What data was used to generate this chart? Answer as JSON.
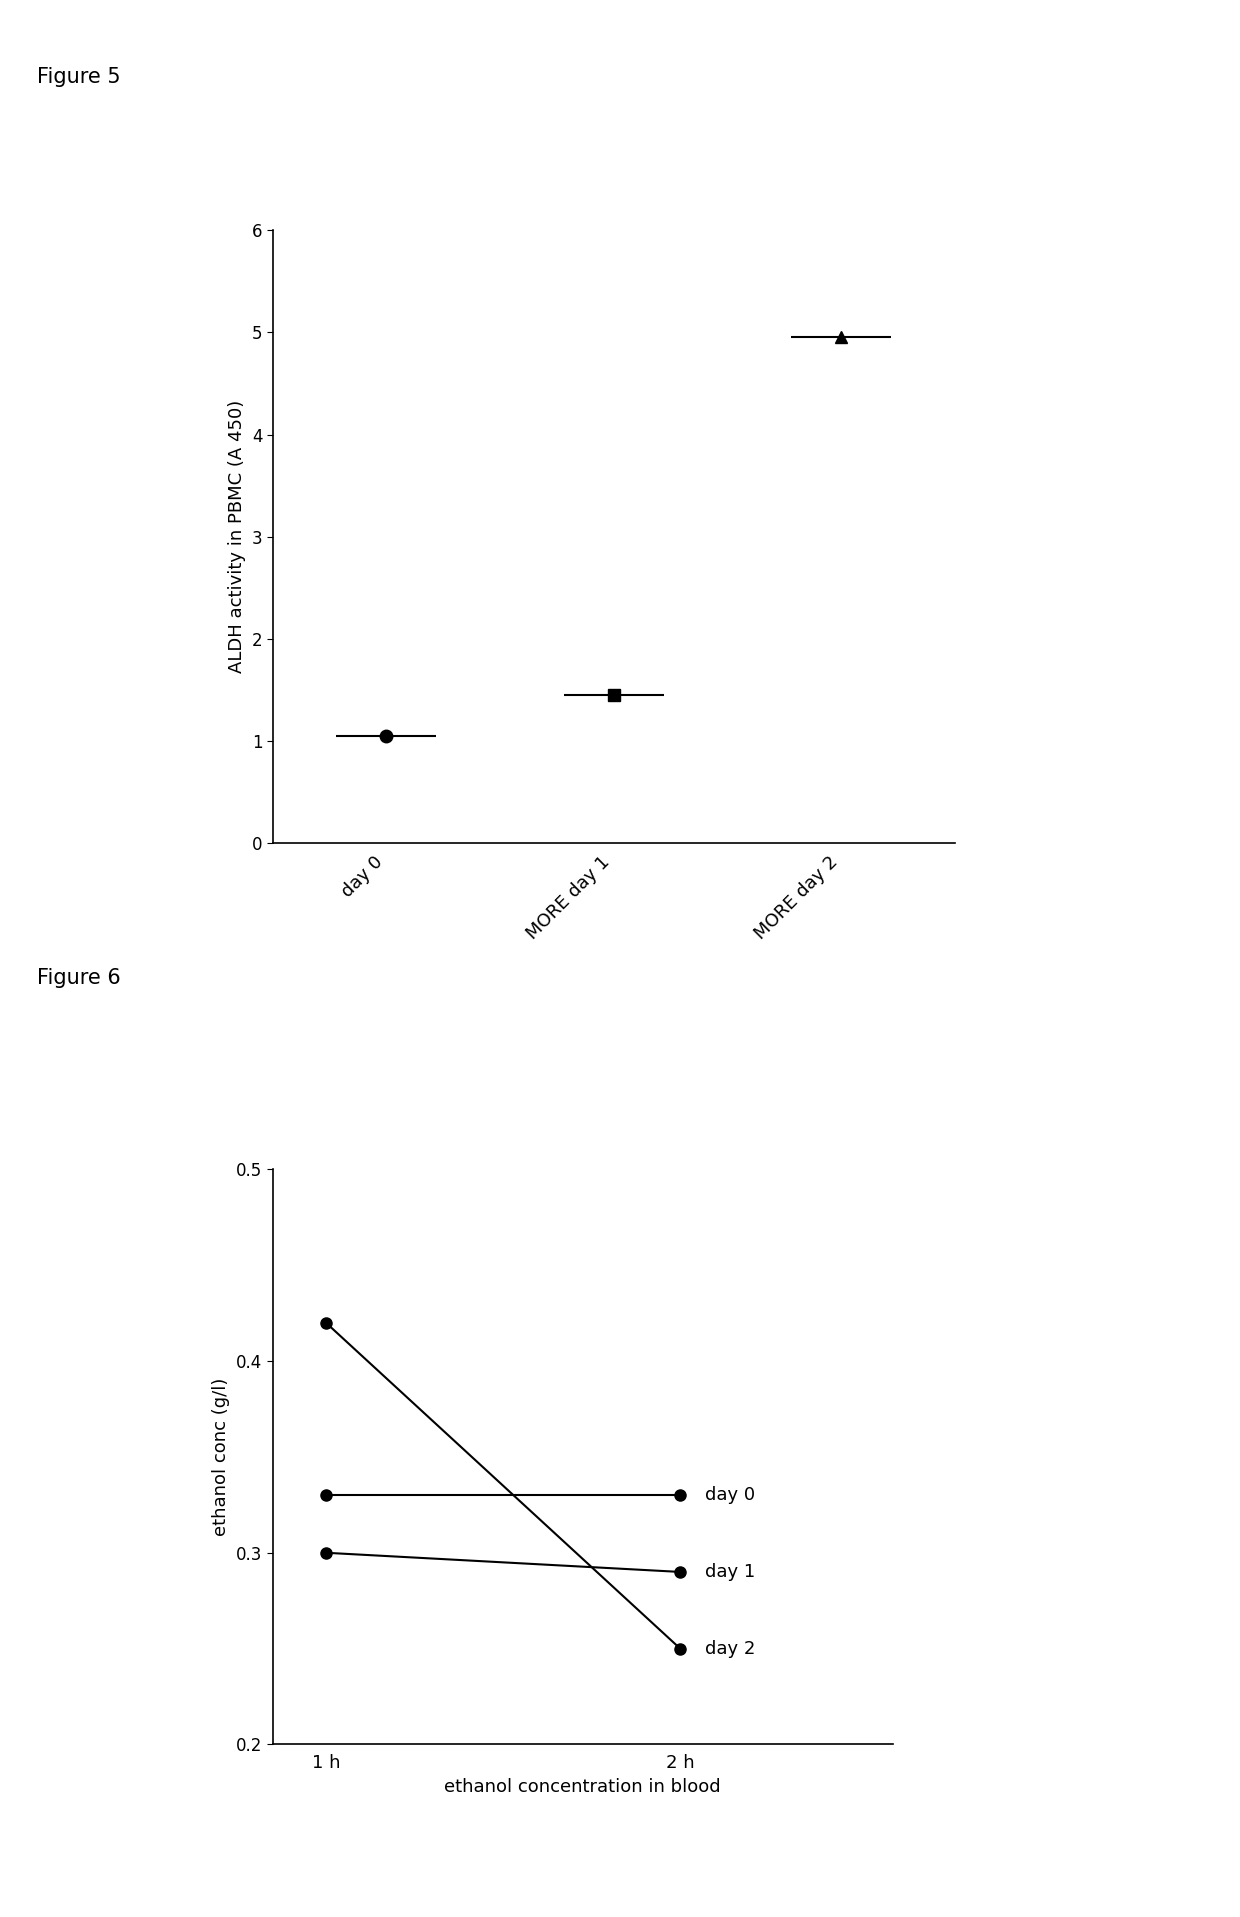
{
  "fig5": {
    "title": "Figure 5",
    "categories": [
      "day 0",
      "MORE day 1",
      "MORE day 2"
    ],
    "x_positions": [
      0,
      1,
      2
    ],
    "y_values": [
      1.05,
      1.45,
      4.95
    ],
    "markers": [
      "o",
      "s",
      "^"
    ],
    "marker_size": 9,
    "ylabel": "ALDH activity in PBMC (A 450)",
    "ylim": [
      0,
      6
    ],
    "yticks": [
      0,
      1,
      2,
      3,
      4,
      5,
      6
    ],
    "xlim": [
      -0.5,
      2.5
    ],
    "line_color": "black",
    "marker_color": "black",
    "error_line_width": 1.5,
    "error_half_width_data": 0.22
  },
  "fig6": {
    "title": "Figure 6",
    "x_labels": [
      "1 h",
      "2 h"
    ],
    "x_positions": [
      0,
      1
    ],
    "lines": [
      {
        "label": "day 0",
        "y": [
          0.33,
          0.33
        ]
      },
      {
        "label": "day 1",
        "y": [
          0.3,
          0.29
        ]
      },
      {
        "label": "day 2",
        "y": [
          0.42,
          0.25
        ]
      }
    ],
    "ylabel": "ethanol conc (g/l)",
    "xlabel": "ethanol concentration in blood",
    "ylim": [
      0.2,
      0.5
    ],
    "yticks": [
      0.2,
      0.3,
      0.4,
      0.5
    ],
    "xlim": [
      -0.15,
      1.6
    ],
    "line_color": "black",
    "marker": "o",
    "marker_size": 8
  },
  "background_color": "#ffffff",
  "font_color": "#000000"
}
